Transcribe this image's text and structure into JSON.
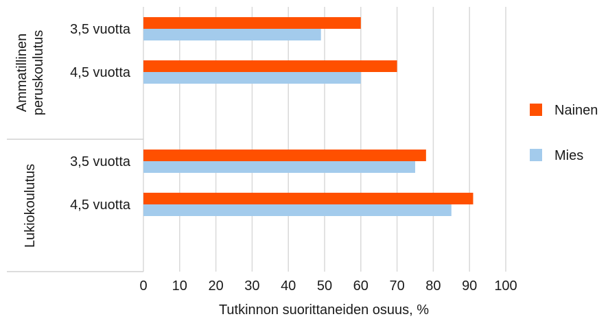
{
  "chart_data": {
    "type": "bar",
    "orientation": "horizontal",
    "groups": [
      {
        "label": "Ammatillinen peruskoulutus",
        "label_lines": [
          "Ammatillinen",
          "peruskoulutus"
        ],
        "categories": [
          "3,5 vuotta",
          "4,5 vuotta"
        ]
      },
      {
        "label": "Lukiokoulutus",
        "label_lines": [
          "Lukiokoulutus"
        ],
        "categories": [
          "3,5 vuotta",
          "4,5 vuotta"
        ]
      }
    ],
    "series": [
      {
        "name": "Nainen",
        "color": "#ff5000",
        "values": [
          60,
          70,
          78,
          91
        ]
      },
      {
        "name": "Mies",
        "color": "#a3cbec",
        "values": [
          49,
          60,
          75,
          85
        ]
      }
    ],
    "xlabel": "Tutkinnon suorittaneiden osuus, %",
    "xlim": [
      0,
      100
    ],
    "xticks": [
      0,
      10,
      20,
      30,
      40,
      50,
      60,
      70,
      80,
      90,
      100
    ],
    "grid": true,
    "legend_position": "right"
  }
}
